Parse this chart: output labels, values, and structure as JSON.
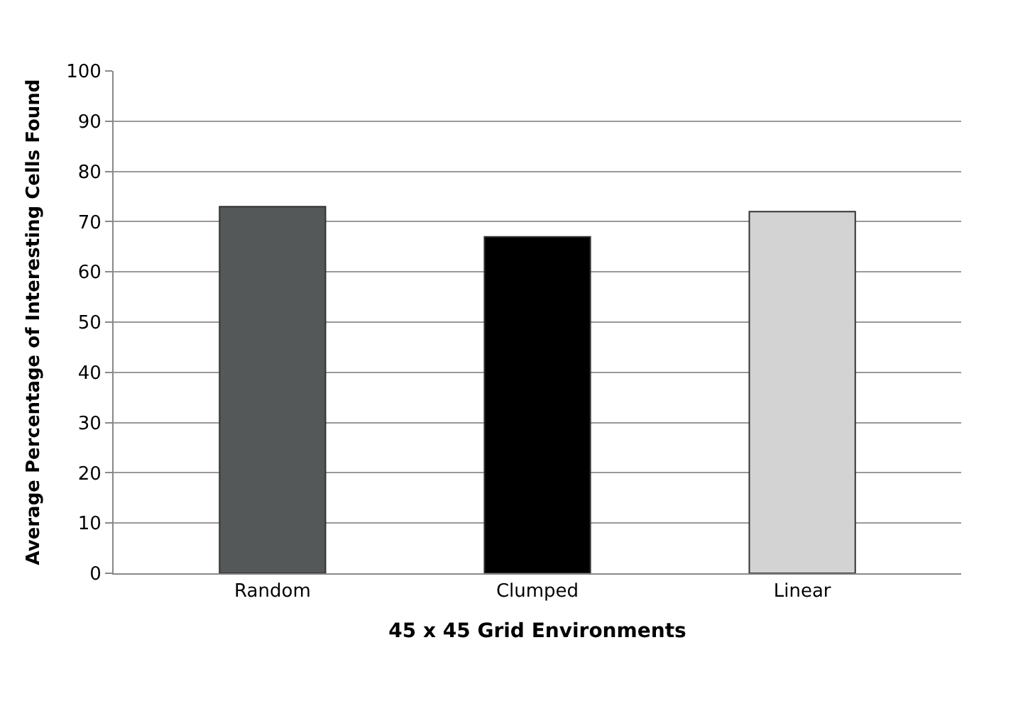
{
  "chart_data": {
    "type": "bar",
    "xlabel": "45 x 45 Grid Environments",
    "ylabel": "Average Percentage of Interesting Cells Found",
    "categories": [
      "Random",
      "Clumped",
      "Linear"
    ],
    "values": [
      73,
      67,
      72
    ],
    "colors": [
      "#555858",
      "#000000",
      "#d3d3d3"
    ],
    "ylim": [
      0,
      100
    ],
    "yticks": [
      0,
      10,
      20,
      30,
      40,
      50,
      60,
      70,
      80,
      90,
      100
    ],
    "grid": "y"
  }
}
